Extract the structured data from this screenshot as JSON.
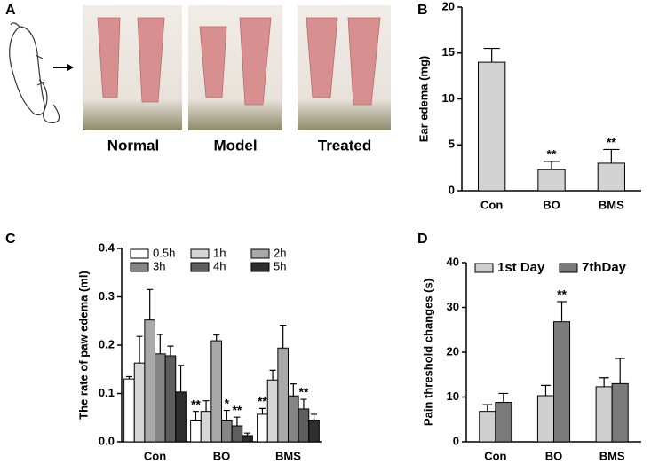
{
  "chart_data": [
    {
      "type": "image",
      "panel": "A",
      "labels": [
        "Normal",
        "Model",
        "Treated"
      ]
    },
    {
      "type": "bar",
      "panel": "B",
      "ylabel": "Ear edema (mg)",
      "categories": [
        "Con",
        "BO",
        "BMS"
      ],
      "values": [
        14,
        2.3,
        3.0
      ],
      "errors": [
        1.5,
        0.9,
        1.5
      ],
      "annotations": [
        null,
        "**",
        "**"
      ],
      "color": "#d3d3d3",
      "ylim": [
        0,
        20
      ],
      "yticks": [
        0,
        5,
        10,
        15,
        20
      ]
    },
    {
      "type": "bar",
      "panel": "C",
      "ylabel": "The rate of paw edema (ml)",
      "categories": [
        "Con",
        "BO",
        "BMS"
      ],
      "legend": "upper left",
      "legend_columns": 3,
      "series": [
        {
          "name": "0.5h",
          "color": "#ffffff",
          "values": [
            0.13,
            0.045,
            0.057
          ],
          "errors": [
            0.005,
            0.018,
            0.012
          ],
          "annotations": [
            null,
            "**",
            "**"
          ]
        },
        {
          "name": "1h",
          "color": "#d6d6d6",
          "values": [
            0.163,
            0.063,
            0.128
          ],
          "errors": [
            0.055,
            0.022,
            0.02
          ],
          "annotations": [
            null,
            null,
            null
          ]
        },
        {
          "name": "2h",
          "color": "#a9a9a9",
          "values": [
            0.252,
            0.209,
            0.194
          ],
          "errors": [
            0.063,
            0.012,
            0.047
          ],
          "annotations": [
            null,
            null,
            null
          ]
        },
        {
          "name": "3h",
          "color": "#858585",
          "values": [
            0.182,
            0.045,
            0.095
          ],
          "errors": [
            0.04,
            0.02,
            0.025
          ],
          "annotations": [
            null,
            "*",
            null
          ]
        },
        {
          "name": "4h",
          "color": "#5e5e5e",
          "values": [
            0.178,
            0.033,
            0.068
          ],
          "errors": [
            0.02,
            0.018,
            0.02
          ],
          "annotations": [
            null,
            "**",
            "**"
          ]
        },
        {
          "name": "5h",
          "color": "#2e2e2e",
          "values": [
            0.103,
            0.013,
            0.045
          ],
          "errors": [
            0.055,
            0.005,
            0.012
          ],
          "annotations": [
            null,
            null,
            null
          ]
        }
      ],
      "ylim": [
        0,
        0.4
      ],
      "yticks": [
        {
          "value": 0,
          "label": "0.0"
        },
        0.1,
        0.2,
        0.3,
        0.4
      ]
    },
    {
      "type": "bar",
      "panel": "D",
      "ylabel": "Pain threshold changes (s)",
      "categories": [
        "Con",
        "BO",
        "BMS"
      ],
      "legend": "upper left",
      "legend_columns": 2,
      "series": [
        {
          "name": "1st Day",
          "color": "#cfcfcf",
          "values": [
            6.8,
            10.3,
            12.3
          ],
          "errors": [
            1.5,
            2.3,
            2.0
          ],
          "annotations": [
            null,
            null,
            null
          ]
        },
        {
          "name": "7thDay",
          "color": "#7a7a7a",
          "values": [
            8.8,
            26.8,
            13.0
          ],
          "errors": [
            2.0,
            4.5,
            5.6
          ],
          "annotations": [
            null,
            "**",
            null
          ]
        }
      ],
      "ylim": [
        0,
        40
      ],
      "yticks": [
        0,
        10,
        20,
        30,
        40
      ]
    }
  ]
}
